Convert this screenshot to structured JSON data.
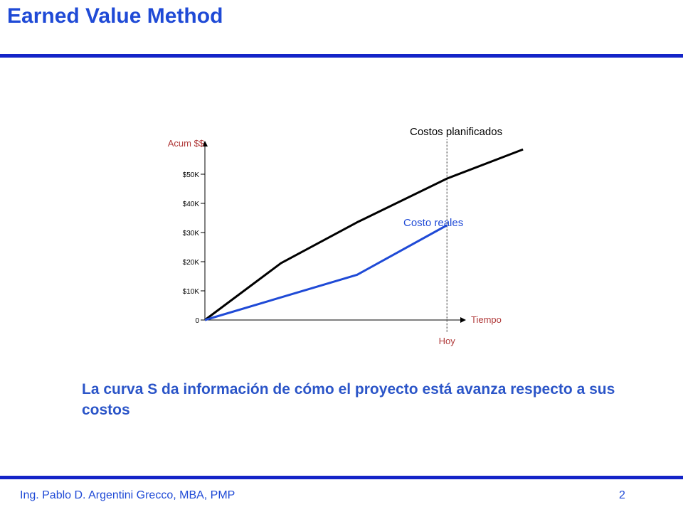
{
  "slide": {
    "title": "Earned Value Method",
    "caption": "La curva S da información de cómo el proyecto está avanza respecto a sus costos",
    "footer_author": "Ing. Pablo D. Argentini Grecco, MBA, PMP",
    "page_number": "2"
  },
  "colors": {
    "title": "#1f4ad6",
    "rule": "#1424c8",
    "axis_label": "#b03a3a",
    "planned": "#000000",
    "actual": "#1f4ad6"
  },
  "chart_data": {
    "type": "line",
    "xlabel": "Tiempo",
    "ylabel": "Acum $$",
    "y_tick_labels": [
      "0",
      "$10K",
      "$20K",
      "$30K",
      "$40K",
      "$50K"
    ],
    "y_ticks": [
      0,
      10,
      20,
      30,
      40,
      50
    ],
    "ylim": [
      0,
      62
    ],
    "xlim": [
      0,
      10
    ],
    "today_label": "Hoy",
    "today_x": 7,
    "series": [
      {
        "name": "Costos planificados",
        "x": [
          0,
          2.2,
          4.4,
          7.0,
          9.2
        ],
        "y": [
          0,
          19.5,
          33.5,
          48.5,
          58.5
        ]
      },
      {
        "name": "Costo reales",
        "x": [
          0,
          4.4,
          7.0
        ],
        "y": [
          0,
          15.5,
          32.5
        ]
      }
    ]
  }
}
